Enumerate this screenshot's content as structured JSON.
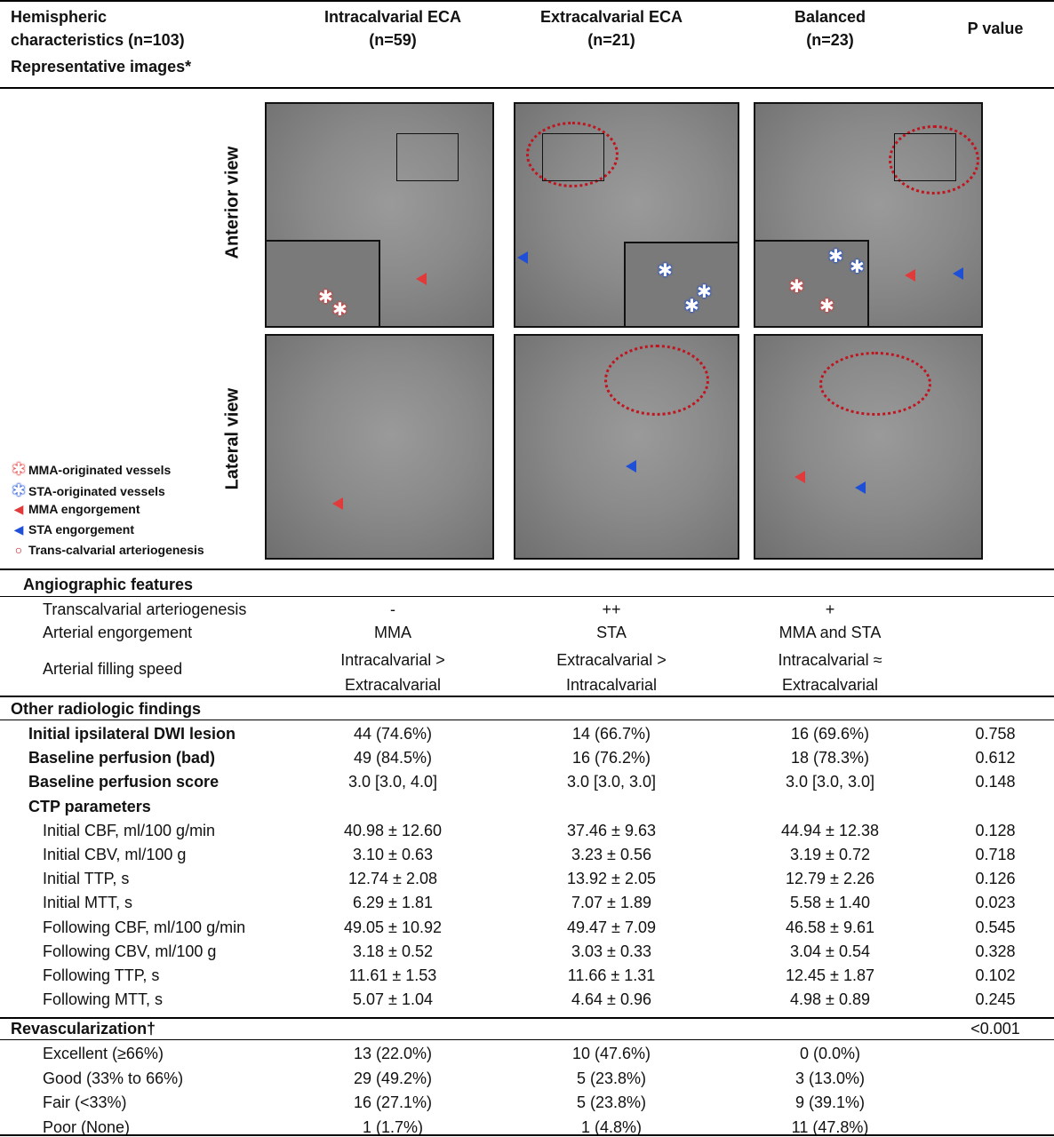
{
  "header": {
    "col1": [
      "Hemispheric",
      "characteristics (n=103)"
    ],
    "col2": [
      "Intracalvarial ECA",
      "(n=59)"
    ],
    "col3": [
      "Extracalvarial ECA",
      "(n=21)"
    ],
    "col4": [
      "Balanced",
      "(n=23)"
    ],
    "col5": "P value",
    "rep_images": "Representative images*"
  },
  "figure": {
    "anterior_label": "Anterior view",
    "lateral_label": "Lateral view",
    "legend": [
      {
        "icon": "mma-asterisk-icon",
        "label": "MMA-originated vessels",
        "color": "#e03a3a"
      },
      {
        "icon": "sta-asterisk-icon",
        "label": "STA-originated vessels",
        "color": "#1e4fd6"
      },
      {
        "icon": "red-arrowhead-icon",
        "label": "MMA engorgement",
        "color": "#e03a3a"
      },
      {
        "icon": "blue-arrowhead-icon",
        "label": "STA engorgement",
        "color": "#1e4fd6"
      },
      {
        "icon": "red-circle-icon",
        "label": "Trans-calvarial arteriogenesis",
        "color": "#c0141e"
      }
    ]
  },
  "angio": {
    "title": "Angiographic features",
    "rows": [
      {
        "label": "Transcalvarial arteriogenesis",
        "c1": "-",
        "c2": "++",
        "c3": "+"
      },
      {
        "label": "Arterial engorgement",
        "c1": "MMA",
        "c2": "STA",
        "c3": "MMA and STA"
      },
      {
        "label": "Arterial filling speed",
        "c1": [
          "Intracalvarial >",
          "Extracalvarial"
        ],
        "c2": [
          "Extracalvarial >",
          "Intracalvarial"
        ],
        "c3": [
          "Intracalvarial ≈",
          "Extracalvarial"
        ]
      }
    ]
  },
  "other": {
    "title": "Other radiologic findings",
    "rows": [
      {
        "label": "Initial ipsilateral DWI lesion",
        "bold": true,
        "c1": "44 (74.6%)",
        "c2": "14 (66.7%)",
        "c3": "16 (69.6%)",
        "p": "0.758"
      },
      {
        "label": "Baseline perfusion (bad)",
        "bold": true,
        "c1": "49 (84.5%)",
        "c2": "16 (76.2%)",
        "c3": "18 (78.3%)",
        "p": "0.612"
      },
      {
        "label": "Baseline perfusion score",
        "bold": true,
        "c1": "3.0 [3.0, 4.0]",
        "c2": "3.0 [3.0, 3.0]",
        "c3": "3.0 [3.0, 3.0]",
        "p": "0.148"
      },
      {
        "label": "CTP parameters",
        "bold": true,
        "c1": "",
        "c2": "",
        "c3": "",
        "p": ""
      },
      {
        "label": "Initial CBF, ml/100 g/min",
        "bold": false,
        "c1": "40.98 ± 12.60",
        "c2": "37.46 ± 9.63",
        "c3": "44.94 ± 12.38",
        "p": "0.128"
      },
      {
        "label": "Initial CBV, ml/100 g",
        "bold": false,
        "c1": "3.10 ± 0.63",
        "c2": "3.23 ± 0.56",
        "c3": "3.19 ± 0.72",
        "p": "0.718"
      },
      {
        "label": "Initial TTP, s",
        "bold": false,
        "c1": "12.74 ± 2.08",
        "c2": "13.92 ± 2.05",
        "c3": "12.79 ± 2.26",
        "p": "0.126"
      },
      {
        "label": "Initial MTT, s",
        "bold": false,
        "c1": "6.29 ± 1.81",
        "c2": "7.07 ± 1.89",
        "c3": "5.58 ± 1.40",
        "p": "0.023"
      },
      {
        "label": "Following CBF, ml/100 g/min",
        "bold": false,
        "c1": "49.05 ± 10.92",
        "c2": "49.47 ± 7.09",
        "c3": "46.58 ± 9.61",
        "p": "0.545"
      },
      {
        "label": "Following CBV, ml/100 g",
        "bold": false,
        "c1": "3.18 ± 0.52",
        "c2": "3.03 ± 0.33",
        "c3": "3.04 ± 0.54",
        "p": "0.328"
      },
      {
        "label": "Following TTP, s",
        "bold": false,
        "c1": "11.61 ± 1.53",
        "c2": "11.66 ± 1.31",
        "c3": "12.45 ± 1.87",
        "p": "0.102"
      },
      {
        "label": "Following MTT, s",
        "bold": false,
        "c1": "5.07 ± 1.04",
        "c2": "4.64 ± 0.96",
        "c3": "4.98 ± 0.89",
        "p": "0.245"
      }
    ]
  },
  "revasc": {
    "title": "Revascularization†",
    "p": "<0.001",
    "rows": [
      {
        "label": "Excellent (≥66%)",
        "c1": "13 (22.0%)",
        "c2": "10 (47.6%)",
        "c3": "0 (0.0%)"
      },
      {
        "label": "Good (33% to 66%)",
        "c1": "29 (49.2%)",
        "c2": "5 (23.8%)",
        "c3": "3 (13.0%)"
      },
      {
        "label": "Fair (<33%)",
        "c1": "16 (27.1%)",
        "c2": "5 (23.8%)",
        "c3": "9 (39.1%)"
      },
      {
        "label": "Poor (None)",
        "c1": "1 (1.7%)",
        "c2": "1 (4.8%)",
        "c3": "11 (47.8%)"
      }
    ]
  }
}
